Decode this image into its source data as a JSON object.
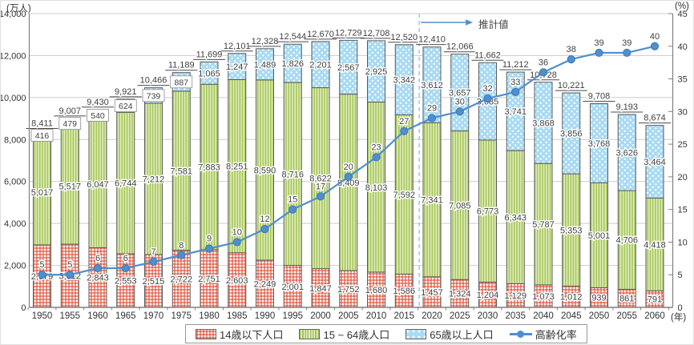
{
  "units": {
    "left": "(万人)",
    "right": "(%)",
    "x": "(年)"
  },
  "projection": {
    "label": "推計値",
    "starts_after_category": 2015
  },
  "legend": {
    "items": [
      {
        "label": "14歳以下人口",
        "swatch": "red-checker-icon"
      },
      {
        "label": "15 ~ 64歳人口",
        "swatch": "green-stripes-icon"
      },
      {
        "label": "65歳以上人口",
        "swatch": "blue-dots-icon"
      },
      {
        "label": "高齢化率",
        "swatch": "blue-line-marker-icon"
      }
    ]
  },
  "colors": {
    "under14_red": "#e2523a",
    "working_green_dark": "#a3c45c",
    "working_green_light": "#e2efbb",
    "senior_blue": "#a9daf3",
    "trend_line_blue": "#4f8fce",
    "trend_marker_stroke": "#3c78b4",
    "bar_border": "#5a5a5a",
    "grid": "#cccccc",
    "axis": "#808080",
    "label_text": "#404040",
    "projection_dash": "#9cc6e8"
  },
  "chart_data": {
    "type": "bar",
    "subtype": "stacked-bar-with-line",
    "title": "",
    "categories": [
      1950,
      1955,
      1960,
      1965,
      1970,
      1975,
      1980,
      1985,
      1990,
      1995,
      2000,
      2005,
      2010,
      2015,
      2020,
      2025,
      2030,
      2035,
      2040,
      2045,
      2050,
      2055,
      2060
    ],
    "series": [
      {
        "name": "14歳以下人口",
        "type": "bar",
        "axis": "left",
        "values": [
          2979,
          3012,
          2843,
          2553,
          2515,
          2722,
          2751,
          2603,
          2249,
          2001,
          1847,
          1752,
          1680,
          1586,
          1457,
          1324,
          1204,
          1129,
          1073,
          1012,
          939,
          861,
          791
        ]
      },
      {
        "name": "15 ~ 64歳人口",
        "type": "bar",
        "axis": "left",
        "values": [
          5017,
          5517,
          6047,
          6744,
          7212,
          7581,
          7883,
          8251,
          8590,
          8716,
          8622,
          8409,
          8103,
          7592,
          7341,
          7085,
          6773,
          6343,
          5787,
          5353,
          5001,
          4706,
          4418
        ]
      },
      {
        "name": "65歳以上人口",
        "type": "bar",
        "axis": "left",
        "values": [
          416,
          479,
          540,
          624,
          739,
          887,
          1065,
          1247,
          1489,
          1826,
          2201,
          2567,
          2925,
          3342,
          3612,
          3657,
          3685,
          3741,
          3868,
          3856,
          3768,
          3626,
          3464
        ]
      },
      {
        "name": "高齢化率",
        "type": "line",
        "axis": "right",
        "values": [
          5,
          5,
          6,
          6,
          7,
          8,
          9,
          10,
          12,
          15,
          17,
          20,
          23,
          27,
          29,
          30,
          32,
          33,
          36,
          38,
          39,
          39,
          40
        ]
      }
    ],
    "totals": [
      8411,
      9007,
      9430,
      9921,
      10466,
      11189,
      11699,
      12101,
      12328,
      12544,
      12670,
      12729,
      12708,
      12520,
      12410,
      12066,
      11662,
      11212,
      10728,
      10221,
      9708,
      9193,
      8674
    ],
    "left_axis": {
      "unit": "(万人)",
      "min": 0,
      "max": 14000,
      "step": 2000
    },
    "right_axis": {
      "unit": "(%)",
      "min": 0,
      "max": 45,
      "step": 5
    },
    "x_axis": {
      "unit": "(年)"
    },
    "grid": "horizontal-only",
    "legend_position": "bottom",
    "projection_boundary_after_index": 13
  }
}
